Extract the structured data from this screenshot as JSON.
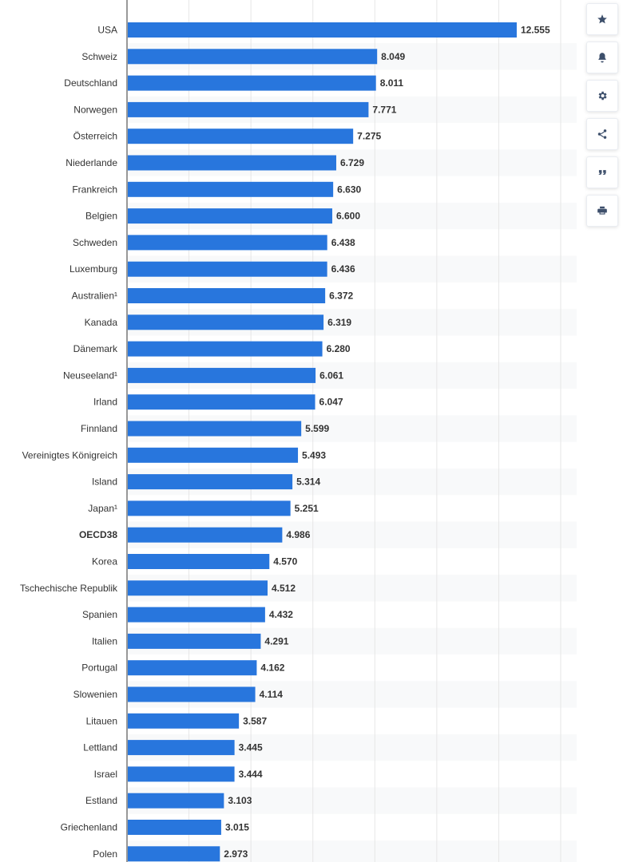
{
  "chart_data": {
    "type": "bar",
    "orientation": "horizontal",
    "bar_color": "#2876dd",
    "categories": [
      "USA",
      "Schweiz",
      "Deutschland",
      "Norwegen",
      "Österreich",
      "Niederlande",
      "Frankreich",
      "Belgien",
      "Schweden",
      "Luxemburg",
      "Australien¹",
      "Kanada",
      "Dänemark",
      "Neuseeland¹",
      "Irland",
      "Finnland",
      "Vereinigtes Königreich",
      "Island",
      "Japan¹",
      "OECD38",
      "Korea",
      "Tschechische Republik",
      "Spanien",
      "Italien",
      "Portugal",
      "Slowenien",
      "Litauen",
      "Lettland",
      "Israel",
      "Estland",
      "Griechenland",
      "Polen"
    ],
    "values": [
      12555,
      8049,
      8011,
      7771,
      7275,
      6729,
      6630,
      6600,
      6438,
      6436,
      6372,
      6319,
      6280,
      6061,
      6047,
      5599,
      5493,
      5314,
      5251,
      4986,
      4570,
      4512,
      4432,
      4291,
      4162,
      4114,
      3587,
      3445,
      3444,
      3103,
      3015,
      2973
    ],
    "value_labels": [
      "12.555",
      "8.049",
      "8.011",
      "7.771",
      "7.275",
      "6.729",
      "6.630",
      "6.600",
      "6.438",
      "6.436",
      "6.372",
      "6.319",
      "6.280",
      "6.061",
      "6.047",
      "5.599",
      "5.493",
      "5.314",
      "5.251",
      "4.986",
      "4.570",
      "4.512",
      "4.432",
      "4.291",
      "4.162",
      "4.114",
      "3.587",
      "3.445",
      "3.444",
      "3.103",
      "3.015",
      "2.973"
    ],
    "highlighted_category": "OECD38",
    "xlim": [
      0,
      14000
    ],
    "grid_step": 2000,
    "grid": true,
    "title": "",
    "xlabel": "",
    "ylabel": ""
  },
  "toolbar": {
    "buttons": [
      {
        "name": "favorite",
        "icon": "star-icon"
      },
      {
        "name": "notification",
        "icon": "bell-icon"
      },
      {
        "name": "settings",
        "icon": "gear-icon"
      },
      {
        "name": "share",
        "icon": "share-icon"
      },
      {
        "name": "cite",
        "icon": "quote-icon"
      },
      {
        "name": "print",
        "icon": "printer-icon"
      }
    ]
  }
}
